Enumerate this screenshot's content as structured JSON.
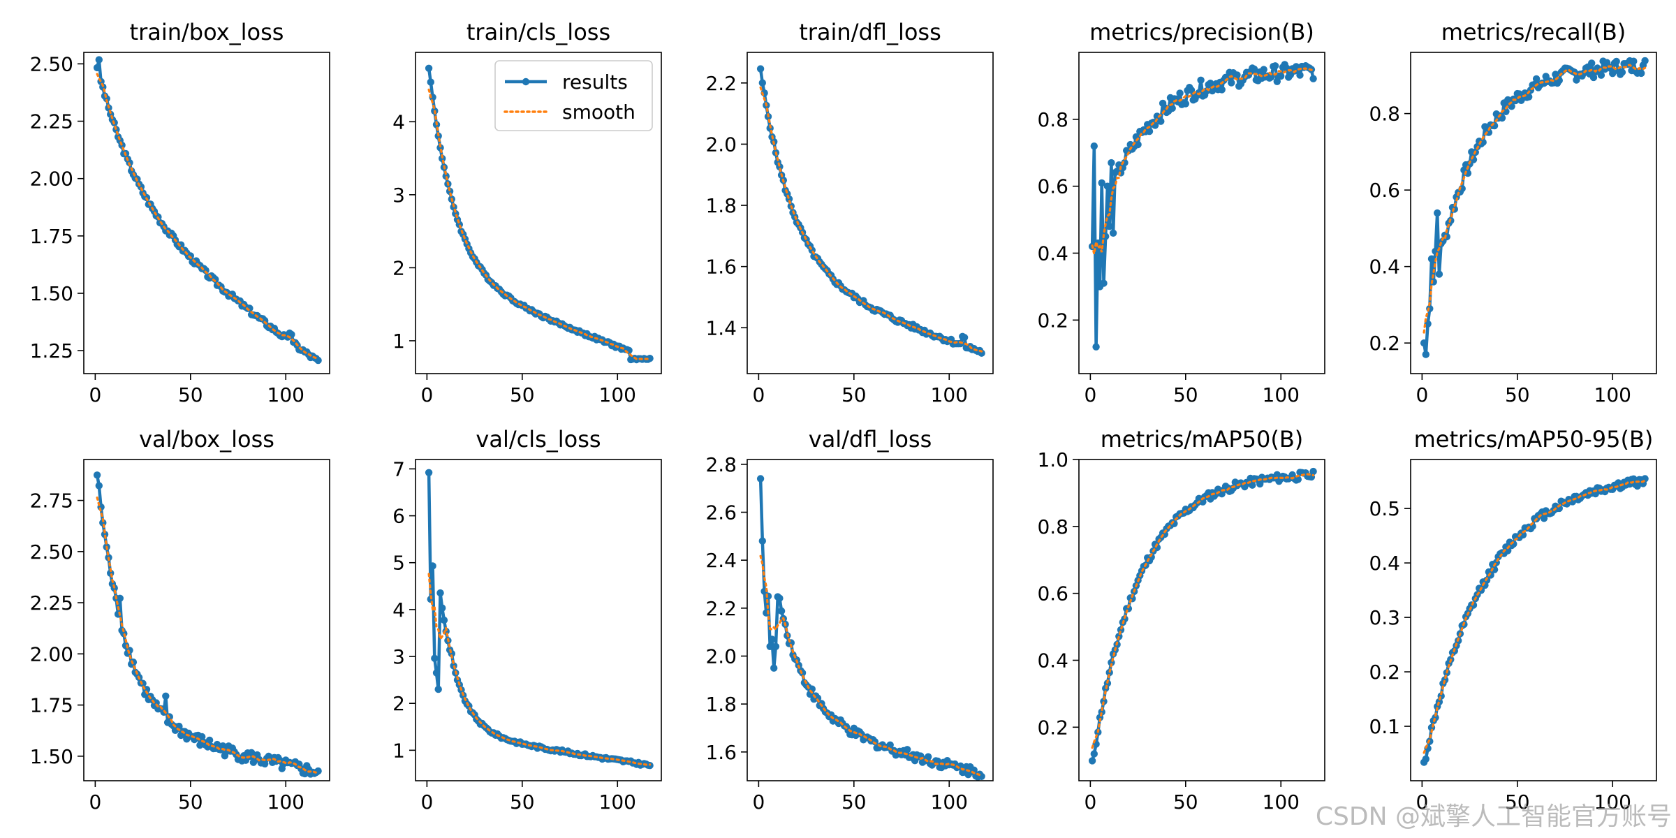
{
  "figure": {
    "watermark": "CSDN @斌擎人工智能官方账号",
    "legend": {
      "results_label": "results",
      "smooth_label": "smooth",
      "location": "upper-right of train/cls_loss"
    },
    "colors": {
      "results": "#1f77b4",
      "smooth": "#ff7f0e",
      "axes": "#000000",
      "background": "#ffffff"
    }
  },
  "chart_data": [
    {
      "type": "line",
      "title": "train/box_loss",
      "xlim": [
        -6,
        123
      ],
      "ylim": [
        1.15,
        2.55
      ],
      "xticks": [
        0,
        50,
        100
      ],
      "yticks": [
        1.25,
        1.5,
        1.75,
        2.0,
        2.25,
        2.5
      ],
      "ytick_labels": [
        "1.25",
        "1.50",
        "1.75",
        "2.00",
        "2.25",
        "2.50"
      ],
      "start": 2.49,
      "mid": 1.58,
      "end": 1.2,
      "shape": "exp",
      "k": 6,
      "noise": 0.012,
      "spikes": [
        [
          2,
          0.05
        ],
        [
          102,
          0.04
        ],
        [
          103,
          0.04
        ]
      ],
      "n": 117
    },
    {
      "type": "line",
      "title": "train/cls_loss",
      "xlim": [
        -6,
        123
      ],
      "ylim": [
        0.55,
        4.95
      ],
      "xticks": [
        0,
        50,
        100
      ],
      "yticks": [
        1,
        2,
        3,
        4
      ],
      "ytick_labels": [
        "1",
        "2",
        "3",
        "4"
      ],
      "start": 4.75,
      "mid": 1.4,
      "end": 0.75,
      "shape": "exp",
      "k": 9,
      "noise": 0.02,
      "drop_at": 107,
      "drop_to": 0.75,
      "n": 117,
      "legend": true
    },
    {
      "type": "line",
      "title": "train/dfl_loss",
      "xlim": [
        -6,
        123
      ],
      "ylim": [
        1.25,
        2.3
      ],
      "xticks": [
        0,
        50,
        100
      ],
      "yticks": [
        1.4,
        1.6,
        1.8,
        2.0,
        2.2
      ],
      "ytick_labels": [
        "1.4",
        "1.6",
        "1.8",
        "2.0",
        "2.2"
      ],
      "start": 2.24,
      "mid": 1.46,
      "end": 1.32,
      "shape": "exp",
      "k": 7,
      "noise": 0.008,
      "spikes": [
        [
          107,
          0.03
        ],
        [
          108,
          0.02
        ]
      ],
      "n": 117
    },
    {
      "type": "line",
      "title": "metrics/precision(B)",
      "xlim": [
        -6,
        123
      ],
      "ylim": [
        0.04,
        1.0
      ],
      "xticks": [
        0,
        50,
        100
      ],
      "yticks": [
        0.2,
        0.4,
        0.6,
        0.8
      ],
      "ytick_labels": [
        "0.2",
        "0.4",
        "0.6",
        "0.8"
      ],
      "start": 0.42,
      "mid": 0.83,
      "end": 0.95,
      "shape": "rise",
      "k": 4.5,
      "noise": 0.025,
      "explicit": [
        [
          1,
          0.42
        ],
        [
          2,
          0.72
        ],
        [
          3,
          0.12
        ],
        [
          4,
          0.43
        ],
        [
          5,
          0.3
        ],
        [
          6,
          0.61
        ],
        [
          7,
          0.31
        ],
        [
          8,
          0.45
        ],
        [
          9,
          0.6
        ],
        [
          10,
          0.48
        ],
        [
          11,
          0.67
        ],
        [
          12,
          0.46
        ]
      ],
      "n": 117
    },
    {
      "type": "line",
      "title": "metrics/recall(B)",
      "xlim": [
        -6,
        123
      ],
      "ylim": [
        0.12,
        0.96
      ],
      "xticks": [
        0,
        50,
        100
      ],
      "yticks": [
        0.2,
        0.4,
        0.6,
        0.8
      ],
      "ytick_labels": [
        "0.2",
        "0.4",
        "0.6",
        "0.8"
      ],
      "start": 0.2,
      "mid": 0.82,
      "end": 0.93,
      "shape": "rise",
      "k": 5,
      "noise": 0.02,
      "explicit": [
        [
          1,
          0.2
        ],
        [
          2,
          0.17
        ],
        [
          3,
          0.25
        ],
        [
          4,
          0.29
        ],
        [
          5,
          0.42
        ],
        [
          6,
          0.36
        ],
        [
          7,
          0.44
        ],
        [
          8,
          0.54
        ],
        [
          9,
          0.38
        ],
        [
          10,
          0.46
        ]
      ],
      "n": 117
    },
    {
      "type": "line",
      "title": "val/box_loss",
      "xlim": [
        -6,
        123
      ],
      "ylim": [
        1.38,
        2.95
      ],
      "xticks": [
        0,
        50,
        100
      ],
      "yticks": [
        1.5,
        1.75,
        2.0,
        2.25,
        2.5,
        2.75
      ],
      "ytick_labels": [
        "1.50",
        "1.75",
        "2.00",
        "2.25",
        "2.50",
        "2.75"
      ],
      "start": 2.88,
      "mid": 1.55,
      "end": 1.42,
      "shape": "exp",
      "k": 8,
      "noise": 0.03,
      "spikes": [
        [
          13,
          0.12
        ],
        [
          37,
          0.1
        ]
      ],
      "n": 117
    },
    {
      "type": "line",
      "title": "val/cls_loss",
      "xlim": [
        -6,
        123
      ],
      "ylim": [
        0.35,
        7.2
      ],
      "xticks": [
        0,
        50,
        100
      ],
      "yticks": [
        1,
        2,
        3,
        4,
        5,
        6,
        7
      ],
      "ytick_labels": [
        "1",
        "2",
        "3",
        "4",
        "5",
        "6",
        "7"
      ],
      "start": 6.92,
      "mid": 1.1,
      "end": 0.68,
      "shape": "exp",
      "k": 12,
      "noise": 0.03,
      "explicit": [
        [
          1,
          6.92
        ],
        [
          2,
          4.22
        ],
        [
          3,
          4.93
        ],
        [
          4,
          2.96
        ],
        [
          5,
          2.65
        ],
        [
          6,
          2.3
        ],
        [
          13,
          3.06
        ]
      ],
      "n": 117
    },
    {
      "type": "line",
      "title": "val/dfl_loss",
      "xlim": [
        -6,
        123
      ],
      "ylim": [
        1.48,
        2.82
      ],
      "xticks": [
        0,
        50,
        100
      ],
      "yticks": [
        1.6,
        1.8,
        2.0,
        2.2,
        2.4,
        2.6,
        2.8
      ],
      "ytick_labels": [
        "1.6",
        "1.8",
        "2.0",
        "2.2",
        "2.4",
        "2.6",
        "2.8"
      ],
      "start": 2.74,
      "mid": 1.64,
      "end": 1.51,
      "shape": "exp",
      "k": 8,
      "noise": 0.02,
      "explicit": [
        [
          1,
          2.74
        ],
        [
          2,
          2.48
        ],
        [
          3,
          2.27
        ],
        [
          4,
          2.18
        ],
        [
          5,
          2.25
        ],
        [
          6,
          2.04
        ],
        [
          7,
          2.07
        ],
        [
          8,
          1.95
        ],
        [
          9,
          2.04
        ]
      ],
      "n": 117
    },
    {
      "type": "line",
      "title": "metrics/mAP50(B)",
      "xlim": [
        -6,
        123
      ],
      "ylim": [
        0.04,
        1.0
      ],
      "xticks": [
        0,
        50,
        100
      ],
      "yticks": [
        0.2,
        0.4,
        0.6,
        0.8,
        1.0
      ],
      "ytick_labels": [
        "0.2",
        "0.4",
        "0.6",
        "0.8",
        "1.0"
      ],
      "start": 0.09,
      "mid": 0.86,
      "end": 0.96,
      "shape": "rise",
      "k": 4.8,
      "noise": 0.012,
      "n": 117
    },
    {
      "type": "line",
      "title": "metrics/mAP50-95(B)",
      "xlim": [
        -6,
        123
      ],
      "ylim": [
        0.0,
        0.59
      ],
      "xticks": [
        0,
        50,
        100
      ],
      "yticks": [
        0.1,
        0.2,
        0.3,
        0.4,
        0.5
      ],
      "ytick_labels": [
        "0.1",
        "0.2",
        "0.3",
        "0.4",
        "0.5"
      ],
      "start": 0.03,
      "mid": 0.45,
      "end": 0.565,
      "shape": "rise",
      "k": 3.6,
      "noise": 0.008,
      "n": 117
    }
  ]
}
